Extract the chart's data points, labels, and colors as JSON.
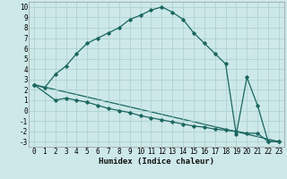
{
  "xlabel": "Humidex (Indice chaleur)",
  "background_color": "#cde8e8",
  "grid_color": "#a8cece",
  "line_color": "#1a6660",
  "xlim": [
    -0.5,
    23.5
  ],
  "ylim": [
    -3.5,
    10.5
  ],
  "xticks": [
    0,
    1,
    2,
    3,
    4,
    5,
    6,
    7,
    8,
    9,
    10,
    11,
    12,
    13,
    14,
    15,
    16,
    17,
    18,
    19,
    20,
    21,
    22,
    23
  ],
  "yticks": [
    -3,
    -2,
    -1,
    0,
    1,
    2,
    3,
    4,
    5,
    6,
    7,
    8,
    9,
    10
  ],
  "curve1_x": [
    0,
    1,
    2,
    3,
    4,
    5,
    6,
    7,
    8,
    9,
    10,
    11,
    12,
    13,
    14,
    15,
    16,
    17,
    18,
    19,
    20,
    21,
    22,
    23
  ],
  "curve1_y": [
    2.5,
    2.2,
    3.5,
    4.3,
    5.5,
    6.5,
    7.0,
    7.5,
    8.0,
    8.8,
    9.2,
    9.7,
    10.0,
    9.5,
    8.8,
    7.5,
    6.5,
    5.5,
    4.5,
    -2.3,
    3.2,
    0.5,
    -3.0,
    -3.0
  ],
  "curve2_x": [
    0,
    2,
    3,
    4,
    5,
    6,
    7,
    8,
    9,
    10,
    11,
    12,
    13,
    14,
    15,
    16,
    17,
    18,
    19,
    20,
    21,
    22,
    23
  ],
  "curve2_y": [
    2.5,
    1.0,
    1.2,
    1.0,
    0.8,
    0.5,
    0.2,
    0.0,
    -0.2,
    -0.5,
    -0.7,
    -0.9,
    -1.1,
    -1.3,
    -1.5,
    -1.6,
    -1.8,
    -1.9,
    -2.0,
    -2.2,
    -2.2,
    -3.0,
    -3.0
  ],
  "curve3_x": [
    0,
    23
  ],
  "curve3_y": [
    2.5,
    -3.0
  ],
  "marker": "D",
  "markersize": 1.8,
  "linewidth": 0.9,
  "tick_fontsize": 5.5
}
